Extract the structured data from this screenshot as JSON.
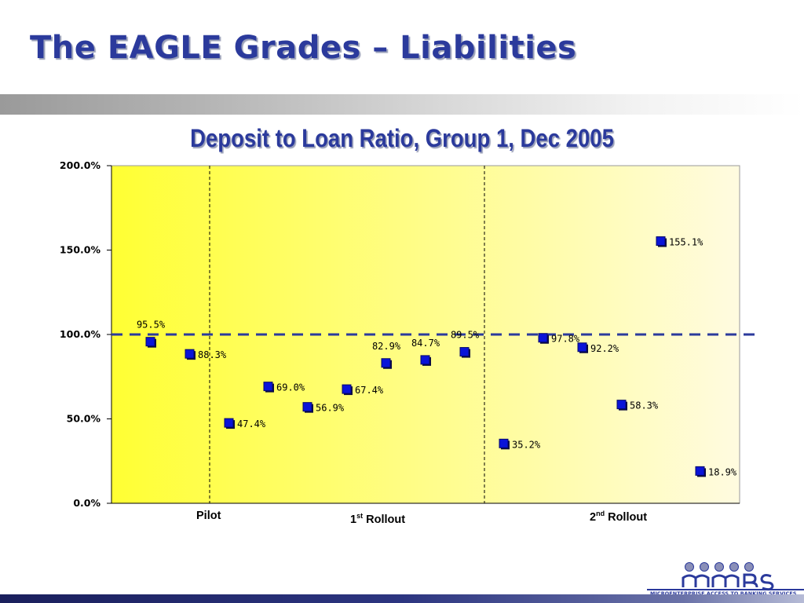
{
  "slide": {
    "title": "The EAGLE Grades – Liabilities"
  },
  "chart_data": {
    "type": "scatter",
    "title": "Deposit to Loan Ratio, Group 1,  Dec 2005",
    "xlabel": "",
    "ylabel": "",
    "ylim": [
      0,
      200
    ],
    "yticks": [
      "0.0%",
      "50.0%",
      "100.0%",
      "150.0%",
      "200.0%"
    ],
    "reference_line": {
      "y": 100,
      "style": "dashed",
      "color": "#2b3a9c"
    },
    "plot_background": "#ffff33",
    "marker_color": "#0a14d8",
    "grid": false,
    "legend": "none",
    "points": [
      {
        "x": 1,
        "y": 95.5,
        "label": "95.5%"
      },
      {
        "x": 2,
        "y": 88.3,
        "label": "88.3%"
      },
      {
        "x": 3,
        "y": 47.4,
        "label": "47.4%"
      },
      {
        "x": 4,
        "y": 69.0,
        "label": "69.0%"
      },
      {
        "x": 5,
        "y": 56.9,
        "label": "56.9%"
      },
      {
        "x": 6,
        "y": 67.4,
        "label": "67.4%"
      },
      {
        "x": 7,
        "y": 82.9,
        "label": "82.9%"
      },
      {
        "x": 8,
        "y": 84.7,
        "label": "84.7%"
      },
      {
        "x": 9,
        "y": 89.5,
        "label": "89.5%"
      },
      {
        "x": 10,
        "y": 35.2,
        "label": "35.2%"
      },
      {
        "x": 11,
        "y": 97.8,
        "label": "97.8%"
      },
      {
        "x": 12,
        "y": 92.2,
        "label": "92.2%"
      },
      {
        "x": 13,
        "y": 58.3,
        "label": "58.3%"
      },
      {
        "x": 14,
        "y": 155.1,
        "label": "155.1%"
      },
      {
        "x": 15,
        "y": 18.9,
        "label": "18.9%"
      }
    ],
    "groups": [
      {
        "label": "Pilot",
        "sup": "",
        "rest": "",
        "from": 1,
        "to": 2
      },
      {
        "label": "1",
        "sup": "st",
        "rest": " Rollout",
        "from": 3,
        "to": 9
      },
      {
        "label": "2",
        "sup": "nd",
        "rest": " Rollout",
        "from": 10,
        "to": 15
      }
    ]
  },
  "logo": {
    "tagline": "MICROENTERPRISE ACCESS TO BANKING SERVICES",
    "icon": "mabs-logo"
  }
}
